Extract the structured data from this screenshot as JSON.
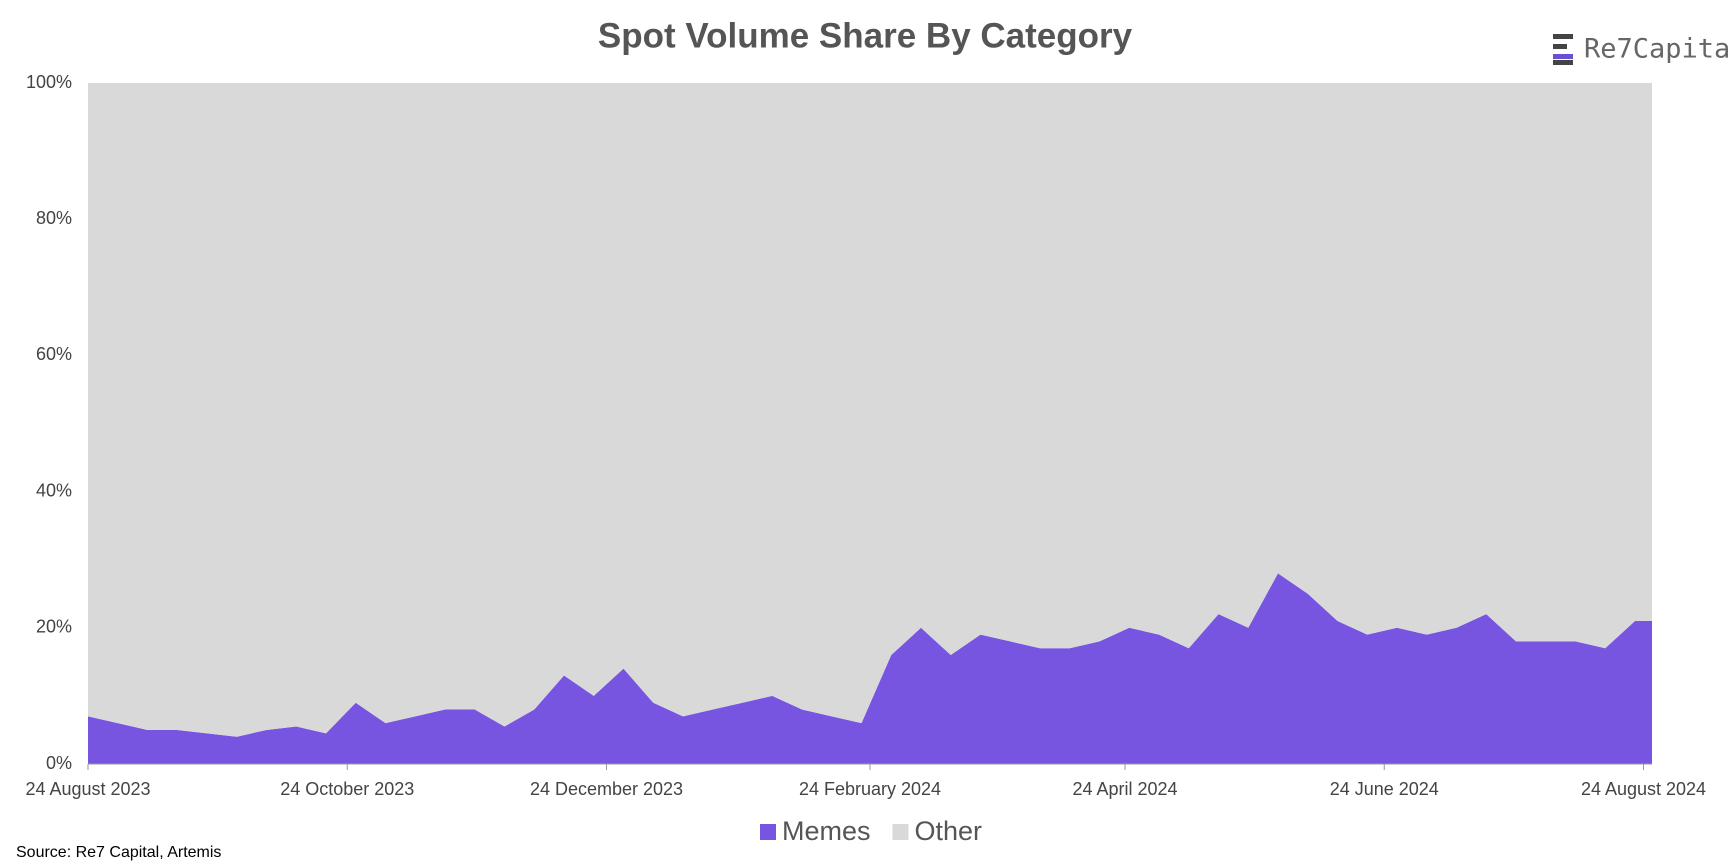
{
  "chart_data": {
    "type": "stacked_area",
    "title": "Spot Volume Share By Category",
    "logo": "Re7Capital",
    "source": "Source: Re7 Capital, Artemis",
    "x": [
      "2023-08-24",
      "2023-08-31",
      "2023-09-07",
      "2023-09-14",
      "2023-09-21",
      "2023-09-28",
      "2023-10-05",
      "2023-10-12",
      "2023-10-19",
      "2023-10-26",
      "2023-11-02",
      "2023-11-09",
      "2023-11-16",
      "2023-11-23",
      "2023-11-30",
      "2023-12-07",
      "2023-12-14",
      "2023-12-21",
      "2023-12-28",
      "2024-01-04",
      "2024-01-11",
      "2024-01-18",
      "2024-01-25",
      "2024-02-01",
      "2024-02-08",
      "2024-02-15",
      "2024-02-22",
      "2024-02-29",
      "2024-03-07",
      "2024-03-14",
      "2024-03-21",
      "2024-03-28",
      "2024-04-04",
      "2024-04-11",
      "2024-04-18",
      "2024-04-25",
      "2024-05-02",
      "2024-05-09",
      "2024-05-16",
      "2024-05-23",
      "2024-05-30",
      "2024-06-06",
      "2024-06-13",
      "2024-06-20",
      "2024-06-27",
      "2024-07-04",
      "2024-07-11",
      "2024-07-18",
      "2024-07-25",
      "2024-08-01",
      "2024-08-08",
      "2024-08-15",
      "2024-08-22",
      "2024-08-26"
    ],
    "series": [
      {
        "name": "Memes",
        "color": "#7755e0",
        "values": [
          7,
          6,
          5,
          5,
          4.5,
          4,
          5,
          5.5,
          4.5,
          9,
          6,
          7,
          8,
          8,
          5.5,
          8,
          13,
          10,
          14,
          9,
          7,
          8,
          9,
          10,
          8,
          7,
          6,
          16,
          20,
          16,
          19,
          18,
          17,
          17,
          18,
          20,
          19,
          17,
          22,
          20,
          28,
          25,
          21,
          19,
          20,
          19,
          20,
          22,
          18,
          18,
          18,
          17,
          21,
          21
        ]
      },
      {
        "name": "Other",
        "color": "#d9d9d9",
        "values": [
          93,
          94,
          95,
          95,
          95.5,
          96,
          95,
          94.5,
          95.5,
          91,
          94,
          93,
          92,
          92,
          94.5,
          92,
          87,
          90,
          86,
          91,
          93,
          92,
          91,
          90,
          92,
          93,
          94,
          84,
          80,
          84,
          81,
          82,
          83,
          83,
          82,
          80,
          81,
          83,
          78,
          80,
          72,
          75,
          79,
          81,
          80,
          81,
          80,
          78,
          82,
          82,
          82,
          83,
          79,
          79
        ]
      }
    ],
    "xlim": [
      "2023-08-24",
      "2024-08-26"
    ],
    "xticks": [
      {
        "value": "2023-08-24",
        "label": "24 August 2023"
      },
      {
        "value": "2023-10-24",
        "label": "24 October 2023"
      },
      {
        "value": "2023-12-24",
        "label": "24 December 2023"
      },
      {
        "value": "2024-02-24",
        "label": "24 February 2024"
      },
      {
        "value": "2024-04-24",
        "label": "24 April 2024"
      },
      {
        "value": "2024-06-24",
        "label": "24 June 2024"
      },
      {
        "value": "2024-08-24",
        "label": "24 August 2024"
      }
    ],
    "ylim": [
      0,
      100
    ],
    "yticks": [
      {
        "value": 0,
        "label": "0%"
      },
      {
        "value": 20,
        "label": "20%"
      },
      {
        "value": 40,
        "label": "40%"
      },
      {
        "value": 60,
        "label": "60%"
      },
      {
        "value": 80,
        "label": "80%"
      },
      {
        "value": 100,
        "label": "100%"
      }
    ],
    "legend": "bottom"
  }
}
